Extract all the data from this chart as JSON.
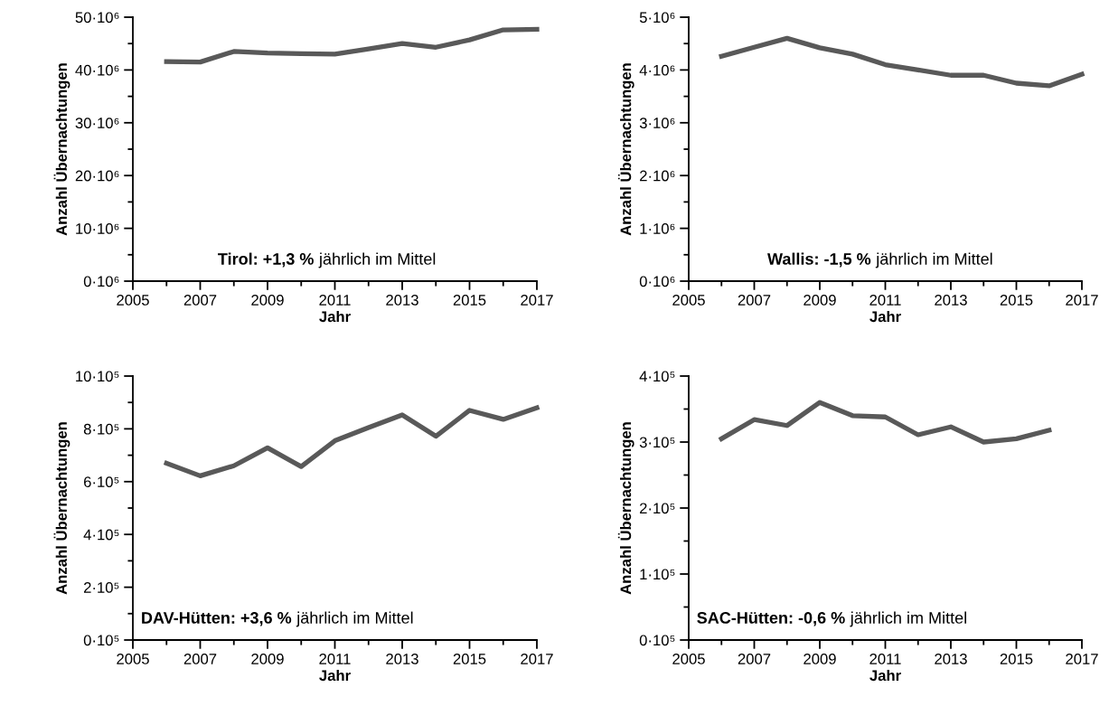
{
  "chart_data": [
    {
      "type": "line",
      "xlabel": "Jahr",
      "ylabel": "Anzahl Übernachtungen",
      "annotations": [
        "Tirol: +1,3 %",
        "jährlich im Mittel"
      ],
      "x": [
        2006,
        2007,
        2008,
        2009,
        2010,
        2011,
        2012,
        2013,
        2014,
        2015,
        2016,
        2017
      ],
      "series": [
        {
          "color": "#595959",
          "values": [
            41600000.0,
            41500000.0,
            43500000.0,
            43200000.0,
            43100000.0,
            43000000.0,
            44000000.0,
            45000000.0,
            44300000.0,
            45700000.0,
            47600000.0,
            47700000.0
          ]
        }
      ],
      "xlim": [
        2005,
        2017
      ],
      "ylim": [
        0,
        50000000.0
      ],
      "xticks": [
        2005,
        {
          "value": 2006,
          "label": null
        },
        2007,
        {
          "value": 2008,
          "label": null
        },
        2009,
        {
          "value": 2010,
          "label": null
        },
        2011,
        {
          "value": 2012,
          "label": null
        },
        2013,
        {
          "value": 2014,
          "label": null
        },
        2015,
        {
          "value": 2016,
          "label": null
        },
        2017
      ],
      "yticks": [
        {
          "value": 0,
          "label": "0·10⁶"
        },
        {
          "value": 5000000.0,
          "label": null
        },
        {
          "value": 10000000.0,
          "label": "10·10⁶"
        },
        {
          "value": 15000000.0,
          "label": null
        },
        {
          "value": 20000000.0,
          "label": "20·10⁶"
        },
        {
          "value": 25000000.0,
          "label": null
        },
        {
          "value": 30000000.0,
          "label": "30·10⁶"
        },
        {
          "value": 35000000.0,
          "label": null
        },
        {
          "value": 40000000.0,
          "label": "40·10⁶"
        },
        {
          "value": 45000000.0,
          "label": null
        },
        {
          "value": 50000000.0,
          "label": "50·10⁶"
        }
      ],
      "grid": false
    },
    {
      "type": "line",
      "xlabel": "Jahr",
      "ylabel": "Anzahl Übernachtungen",
      "annotations": [
        "Wallis: -1,5 %",
        "jährlich im Mittel"
      ],
      "x": [
        2006,
        2007,
        2008,
        2009,
        2010,
        2011,
        2012,
        2013,
        2014,
        2015,
        2016,
        2017
      ],
      "series": [
        {
          "color": "#595959",
          "values": [
            4260000.0,
            4430000.0,
            4600000.0,
            4420000.0,
            4300000.0,
            4100000.0,
            4000000.0,
            3900000.0,
            3900000.0,
            3750000.0,
            3700000.0,
            3920000.0
          ]
        }
      ],
      "xlim": [
        2005,
        2017
      ],
      "ylim": [
        0,
        5000000.0
      ],
      "xticks": [
        2005,
        {
          "value": 2006,
          "label": null
        },
        2007,
        {
          "value": 2008,
          "label": null
        },
        2009,
        {
          "value": 2010,
          "label": null
        },
        2011,
        {
          "value": 2012,
          "label": null
        },
        2013,
        {
          "value": 2014,
          "label": null
        },
        2015,
        {
          "value": 2016,
          "label": null
        },
        2017
      ],
      "yticks": [
        {
          "value": 0,
          "label": "0·10⁶"
        },
        {
          "value": 500000.0,
          "label": null
        },
        {
          "value": 1000000.0,
          "label": "1·10⁶"
        },
        {
          "value": 1500000.0,
          "label": null
        },
        {
          "value": 2000000.0,
          "label": "2·10⁶"
        },
        {
          "value": 2500000.0,
          "label": null
        },
        {
          "value": 3000000.0,
          "label": "3·10⁶"
        },
        {
          "value": 3500000.0,
          "label": null
        },
        {
          "value": 4000000.0,
          "label": "4·10⁶"
        },
        {
          "value": 4500000.0,
          "label": null
        },
        {
          "value": 5000000.0,
          "label": "5·10⁶"
        }
      ],
      "grid": false
    },
    {
      "type": "line",
      "xlabel": "Jahr",
      "ylabel": "Anzahl Übernachtungen",
      "annotations": [
        "DAV-Hütten: +3,6 %",
        "jährlich im Mittel"
      ],
      "x": [
        2006,
        2007,
        2008,
        2009,
        2010,
        2011,
        2012,
        2013,
        2014,
        2015,
        2016,
        2017
      ],
      "series": [
        {
          "color": "#595959",
          "values": [
            670000.0,
            622000.0,
            660000.0,
            728000.0,
            657000.0,
            755000.0,
            805000.0,
            853000.0,
            772000.0,
            870000.0,
            836000.0,
            880000.0
          ]
        }
      ],
      "xlim": [
        2005,
        2017
      ],
      "ylim": [
        0,
        1000000.0
      ],
      "xticks": [
        2005,
        {
          "value": 2006,
          "label": null
        },
        2007,
        {
          "value": 2008,
          "label": null
        },
        2009,
        {
          "value": 2010,
          "label": null
        },
        2011,
        {
          "value": 2012,
          "label": null
        },
        2013,
        {
          "value": 2014,
          "label": null
        },
        2015,
        {
          "value": 2016,
          "label": null
        },
        2017
      ],
      "yticks": [
        {
          "value": 0,
          "label": "0·10⁵"
        },
        {
          "value": 100000.0,
          "label": null
        },
        {
          "value": 200000.0,
          "label": "2·10⁵"
        },
        {
          "value": 300000.0,
          "label": null
        },
        {
          "value": 400000.0,
          "label": "4·10⁵"
        },
        {
          "value": 500000.0,
          "label": null
        },
        {
          "value": 600000.0,
          "label": "6·10⁵"
        },
        {
          "value": 700000.0,
          "label": null
        },
        {
          "value": 800000.0,
          "label": "8·10⁵"
        },
        {
          "value": 900000.0,
          "label": null
        },
        {
          "value": 1000000.0,
          "label": "10·10⁵"
        }
      ],
      "grid": false
    },
    {
      "type": "line",
      "xlabel": "Jahr",
      "ylabel": "Anzahl Übernachtungen",
      "annotations": [
        "SAC-Hütten: -0,6 %",
        "jährlich im Mittel"
      ],
      "x": [
        2006,
        2007,
        2008,
        2009,
        2010,
        2011,
        2012,
        2013,
        2014,
        2015,
        2016
      ],
      "series": [
        {
          "color": "#595959",
          "values": [
            305000.0,
            334000.0,
            325000.0,
            360000.0,
            340000.0,
            338000.0,
            311000.0,
            323000.0,
            300000.0,
            305000.0,
            318000.0
          ]
        }
      ],
      "xlim": [
        2005,
        2017
      ],
      "ylim": [
        0,
        400000.0
      ],
      "xticks": [
        2005,
        {
          "value": 2006,
          "label": null
        },
        2007,
        {
          "value": 2008,
          "label": null
        },
        2009,
        {
          "value": 2010,
          "label": null
        },
        2011,
        {
          "value": 2012,
          "label": null
        },
        2013,
        {
          "value": 2014,
          "label": null
        },
        2015,
        {
          "value": 2016,
          "label": null
        },
        2017
      ],
      "yticks": [
        {
          "value": 0,
          "label": "0·10⁵"
        },
        {
          "value": 50000.0,
          "label": null
        },
        {
          "value": 100000.0,
          "label": "1·10⁵"
        },
        {
          "value": 150000.0,
          "label": null
        },
        {
          "value": 200000.0,
          "label": "2·10⁵"
        },
        {
          "value": 250000.0,
          "label": null
        },
        {
          "value": 300000.0,
          "label": "3·10⁵"
        },
        {
          "value": 350000.0,
          "label": null
        },
        {
          "value": 400000.0,
          "label": "4·10⁵"
        }
      ],
      "grid": false
    }
  ]
}
